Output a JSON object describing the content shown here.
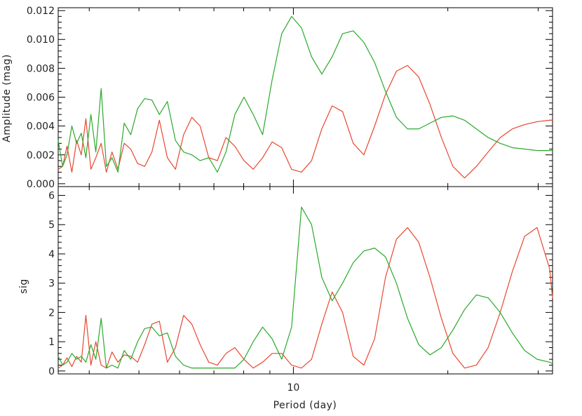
{
  "colors": {
    "series_a": "#e8472f",
    "series_b": "#2aaa2a",
    "axis": "#000000"
  },
  "chart_data": [
    {
      "type": "line",
      "ylabel": "Amplitude (mag)",
      "xlabel": "",
      "ylim": [
        -0.0002,
        0.0122
      ],
      "yticks": [
        0.0,
        0.002,
        0.004,
        0.006,
        0.008,
        0.01,
        0.012
      ],
      "ytick_labels": [
        "0.000",
        "0.002",
        "0.004",
        "0.006",
        "0.008",
        "0.010",
        "0.012"
      ],
      "series": [
        {
          "color": "#e8472f",
          "x": [
            3.48,
            3.55,
            3.62,
            3.7,
            3.78,
            3.86,
            3.94,
            4.03,
            4.12,
            4.22,
            4.32,
            4.43,
            4.55,
            4.68,
            4.82,
            4.97,
            5.13,
            5.3,
            5.48,
            5.68,
            5.89,
            6.11,
            6.34,
            6.58,
            6.84,
            7.11,
            7.39,
            7.69,
            8.01,
            8.35,
            8.71,
            9.09,
            9.49,
            9.92,
            10.37,
            10.85,
            11.36,
            11.9,
            12.47,
            13.08,
            13.72,
            14.4,
            15.12,
            15.88,
            16.69,
            17.55,
            18.46,
            19.43,
            20.46,
            21.56,
            22.73,
            23.97,
            25.3,
            26.72,
            28.23,
            29.85,
            31.58,
            32.0
          ],
          "y": [
            0.001,
            0.0012,
            0.0026,
            0.0008,
            0.003,
            0.002,
            0.0045,
            0.001,
            0.0018,
            0.0028,
            0.0008,
            0.0022,
            0.001,
            0.0028,
            0.0024,
            0.0014,
            0.0012,
            0.0022,
            0.0044,
            0.0018,
            0.001,
            0.0034,
            0.0046,
            0.004,
            0.0018,
            0.0016,
            0.0032,
            0.0026,
            0.0016,
            0.001,
            0.0018,
            0.0029,
            0.0025,
            0.001,
            0.0008,
            0.0016,
            0.0038,
            0.0054,
            0.005,
            0.0028,
            0.002,
            0.004,
            0.0062,
            0.0078,
            0.0082,
            0.0074,
            0.0055,
            0.0032,
            0.0012,
            0.0004,
            0.0012,
            0.0022,
            0.0032,
            0.0038,
            0.0041,
            0.0043,
            0.0044,
            0.0044
          ]
        },
        {
          "color": "#2aaa2a",
          "x": [
            3.48,
            3.55,
            3.62,
            3.7,
            3.78,
            3.86,
            3.94,
            4.03,
            4.12,
            4.22,
            4.32,
            4.43,
            4.55,
            4.68,
            4.82,
            4.97,
            5.13,
            5.3,
            5.48,
            5.68,
            5.89,
            6.11,
            6.34,
            6.58,
            6.84,
            7.11,
            7.39,
            7.69,
            8.01,
            8.35,
            8.71,
            9.09,
            9.49,
            9.92,
            10.37,
            10.85,
            11.36,
            11.9,
            12.47,
            13.08,
            13.72,
            14.4,
            15.12,
            15.88,
            16.69,
            17.55,
            18.46,
            19.43,
            20.46,
            21.56,
            22.73,
            23.97,
            25.3,
            26.72,
            28.23,
            29.85,
            31.58,
            32.0
          ],
          "y": [
            0.003,
            0.0012,
            0.002,
            0.004,
            0.0028,
            0.0035,
            0.0018,
            0.0048,
            0.0022,
            0.0066,
            0.0012,
            0.0018,
            0.0008,
            0.0042,
            0.0034,
            0.0052,
            0.0059,
            0.0058,
            0.0048,
            0.0057,
            0.003,
            0.0022,
            0.002,
            0.0016,
            0.0018,
            0.0008,
            0.0022,
            0.0048,
            0.006,
            0.0048,
            0.0034,
            0.0072,
            0.0104,
            0.0116,
            0.0108,
            0.0088,
            0.0076,
            0.0088,
            0.0104,
            0.0106,
            0.0098,
            0.0084,
            0.0064,
            0.0046,
            0.0038,
            0.0038,
            0.0042,
            0.0046,
            0.0047,
            0.0044,
            0.0038,
            0.0032,
            0.0028,
            0.0025,
            0.0024,
            0.0023,
            0.0023,
            0.0023
          ]
        }
      ]
    },
    {
      "type": "line",
      "ylabel": "sig",
      "xlabel": "Period (day)",
      "xscale": "log",
      "xlim": [
        3.48,
        32.0
      ],
      "xticks": [
        10
      ],
      "xtick_labels": [
        "10"
      ],
      "ylim": [
        -0.1,
        6.3
      ],
      "yticks": [
        0,
        1,
        2,
        3,
        4,
        5,
        6
      ],
      "ytick_labels": [
        "0",
        "1",
        "2",
        "3",
        "4",
        "5",
        "6"
      ],
      "series": [
        {
          "color": "#e8472f",
          "x": [
            3.48,
            3.55,
            3.62,
            3.7,
            3.78,
            3.86,
            3.94,
            4.03,
            4.12,
            4.22,
            4.32,
            4.43,
            4.55,
            4.68,
            4.82,
            4.97,
            5.13,
            5.3,
            5.48,
            5.68,
            5.89,
            6.11,
            6.34,
            6.58,
            6.84,
            7.11,
            7.39,
            7.69,
            8.01,
            8.35,
            8.71,
            9.09,
            9.49,
            9.92,
            10.37,
            10.85,
            11.36,
            11.9,
            12.47,
            13.08,
            13.72,
            14.4,
            15.12,
            15.88,
            16.69,
            17.55,
            18.46,
            19.43,
            20.46,
            21.56,
            22.73,
            23.97,
            25.3,
            26.72,
            28.23,
            29.85,
            31.58,
            32.0
          ],
          "y": [
            0.1,
            0.2,
            0.45,
            0.15,
            0.5,
            0.3,
            1.9,
            0.2,
            1.0,
            0.2,
            0.1,
            0.65,
            0.3,
            0.55,
            0.5,
            0.3,
            0.9,
            1.6,
            1.7,
            0.3,
            0.8,
            1.9,
            1.6,
            0.9,
            0.3,
            0.2,
            0.6,
            0.8,
            0.4,
            0.1,
            0.3,
            0.6,
            0.6,
            0.2,
            0.1,
            0.4,
            1.6,
            2.7,
            2.0,
            0.5,
            0.2,
            1.1,
            3.2,
            4.5,
            4.9,
            4.4,
            3.2,
            1.8,
            0.6,
            0.1,
            0.2,
            0.8,
            2.0,
            3.4,
            4.6,
            4.9,
            3.5,
            2.5
          ]
        },
        {
          "color": "#2aaa2a",
          "x": [
            3.48,
            3.55,
            3.62,
            3.7,
            3.78,
            3.86,
            3.94,
            4.03,
            4.12,
            4.22,
            4.32,
            4.43,
            4.55,
            4.68,
            4.82,
            4.97,
            5.13,
            5.3,
            5.48,
            5.68,
            5.89,
            6.11,
            6.34,
            6.58,
            6.84,
            7.11,
            7.39,
            7.69,
            8.01,
            8.35,
            8.71,
            9.09,
            9.49,
            9.92,
            10.37,
            10.85,
            11.36,
            11.9,
            12.47,
            13.08,
            13.72,
            14.4,
            15.12,
            15.88,
            16.69,
            17.55,
            18.46,
            19.43,
            20.46,
            21.56,
            22.73,
            23.97,
            25.3,
            26.72,
            28.23,
            29.85,
            31.58,
            32.0
          ],
          "y": [
            0.5,
            0.2,
            0.3,
            0.6,
            0.4,
            0.5,
            0.3,
            0.9,
            0.4,
            1.8,
            0.1,
            0.2,
            0.1,
            0.7,
            0.4,
            1.0,
            1.45,
            1.5,
            1.2,
            1.3,
            0.5,
            0.2,
            0.1,
            0.1,
            0.1,
            0.1,
            0.1,
            0.1,
            0.4,
            1.0,
            1.5,
            1.1,
            0.4,
            1.5,
            5.6,
            5.0,
            3.2,
            2.4,
            3.0,
            3.7,
            4.1,
            4.2,
            3.9,
            3.0,
            1.8,
            0.9,
            0.55,
            0.8,
            1.4,
            2.1,
            2.6,
            2.5,
            2.0,
            1.3,
            0.7,
            0.4,
            0.3,
            0.25
          ]
        }
      ]
    }
  ]
}
